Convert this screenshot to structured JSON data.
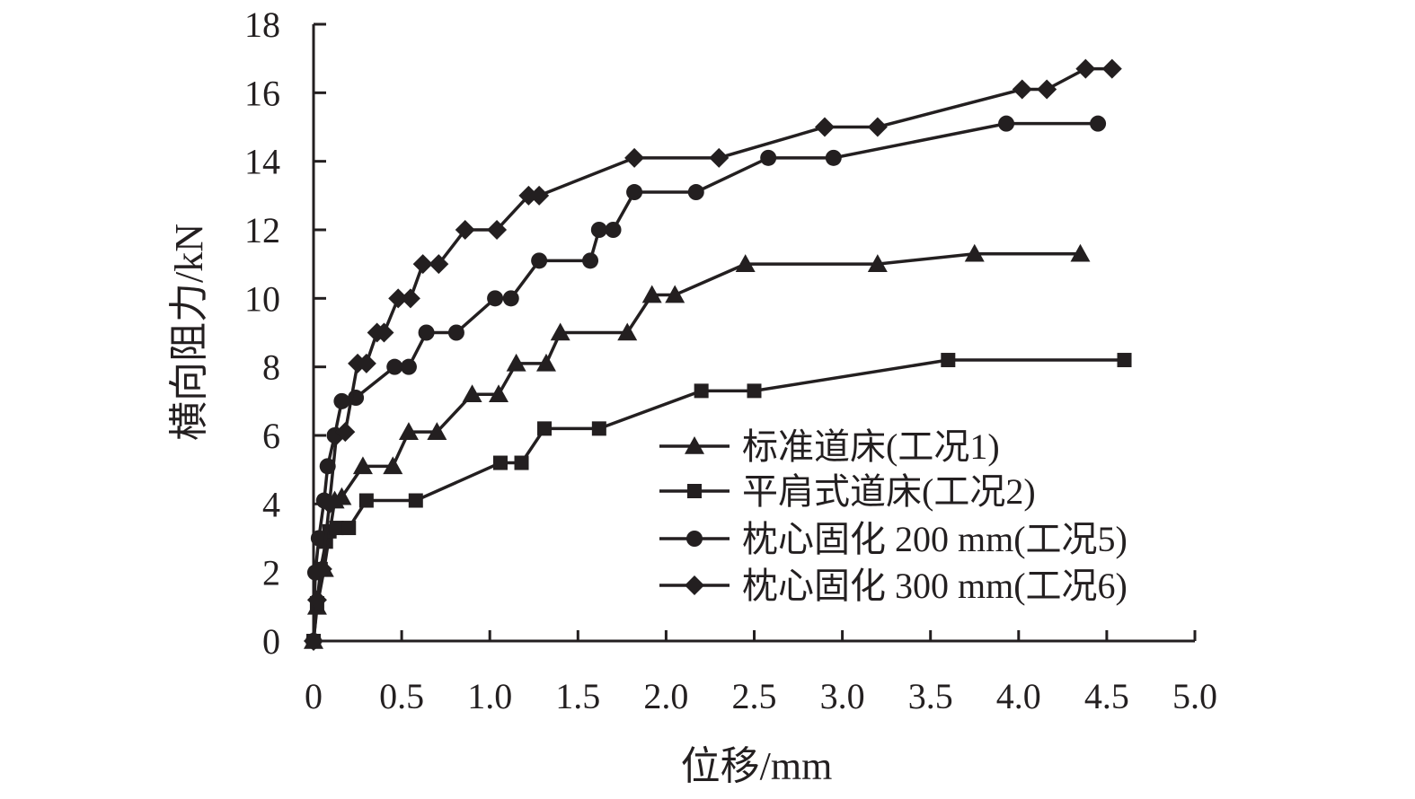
{
  "chart_data": {
    "type": "line",
    "xlabel": "位移/mm",
    "ylabel": "横向阻力/kN",
    "xlim": [
      0,
      5.0
    ],
    "ylim": [
      0,
      18
    ],
    "xticks": [
      "0",
      "0.5",
      "1.0",
      "1.5",
      "2.0",
      "2.5",
      "3.0",
      "3.5",
      "4.0",
      "4.5",
      "5.0"
    ],
    "yticks": [
      "0",
      "2",
      "4",
      "6",
      "8",
      "10",
      "12",
      "14",
      "16",
      "18"
    ],
    "grid": false,
    "legend_position": "center-right",
    "line_color": "#231f20",
    "series": [
      {
        "name": "标准道床(工况1)",
        "marker": "triangle",
        "x": [
          0,
          0.02,
          0.06,
          0.12,
          0.16,
          0.28,
          0.45,
          0.54,
          0.7,
          0.9,
          1.05,
          1.15,
          1.32,
          1.4,
          1.78,
          1.92,
          2.05,
          2.45,
          3.2,
          3.75,
          4.35
        ],
        "y": [
          0,
          1.0,
          2.1,
          4.1,
          4.2,
          5.1,
          5.1,
          6.1,
          6.1,
          7.2,
          7.2,
          8.1,
          8.1,
          9.0,
          9.0,
          10.1,
          10.1,
          11.0,
          11.0,
          11.3,
          11.3
        ]
      },
      {
        "name": "平肩式道床(工况2)",
        "marker": "square",
        "x": [
          0,
          0.02,
          0.04,
          0.07,
          0.09,
          0.13,
          0.2,
          0.3,
          0.58,
          1.06,
          1.18,
          1.31,
          1.62,
          2.2,
          2.5,
          3.6,
          4.6
        ],
        "y": [
          0,
          1.1,
          2.1,
          2.9,
          3.2,
          3.3,
          3.3,
          4.1,
          4.1,
          5.2,
          5.2,
          6.2,
          6.2,
          7.3,
          7.3,
          8.2,
          8.2
        ]
      },
      {
        "name": "枕心固化 200 mm(工况5)",
        "marker": "circle",
        "x": [
          0,
          0.01,
          0.03,
          0.06,
          0.08,
          0.12,
          0.16,
          0.24,
          0.46,
          0.54,
          0.64,
          0.81,
          1.03,
          1.12,
          1.28,
          1.57,
          1.62,
          1.7,
          1.82,
          2.17,
          2.58,
          2.95,
          3.93,
          4.45
        ],
        "y": [
          0,
          2.0,
          3.0,
          4.1,
          5.1,
          6.0,
          7.0,
          7.1,
          8.0,
          8.0,
          9.0,
          9.0,
          10.0,
          10.0,
          11.1,
          11.1,
          12.0,
          12.0,
          13.1,
          13.1,
          14.1,
          14.1,
          15.1,
          15.1
        ]
      },
      {
        "name": "枕心固化 300 mm(工况6)",
        "marker": "diamond",
        "x": [
          0,
          0.02,
          0.05,
          0.09,
          0.13,
          0.18,
          0.25,
          0.3,
          0.36,
          0.4,
          0.48,
          0.55,
          0.62,
          0.71,
          0.86,
          1.04,
          1.22,
          1.28,
          1.82,
          2.3,
          2.9,
          3.2,
          4.02,
          4.16,
          4.38,
          4.53
        ],
        "y": [
          0,
          1.2,
          2.1,
          4.0,
          6.0,
          6.1,
          8.1,
          8.1,
          9.0,
          9.0,
          10.0,
          10.0,
          11.0,
          11.0,
          12.0,
          12.0,
          13.0,
          13.0,
          14.1,
          14.1,
          15.0,
          15.0,
          16.1,
          16.1,
          16.7,
          16.7
        ]
      }
    ]
  }
}
